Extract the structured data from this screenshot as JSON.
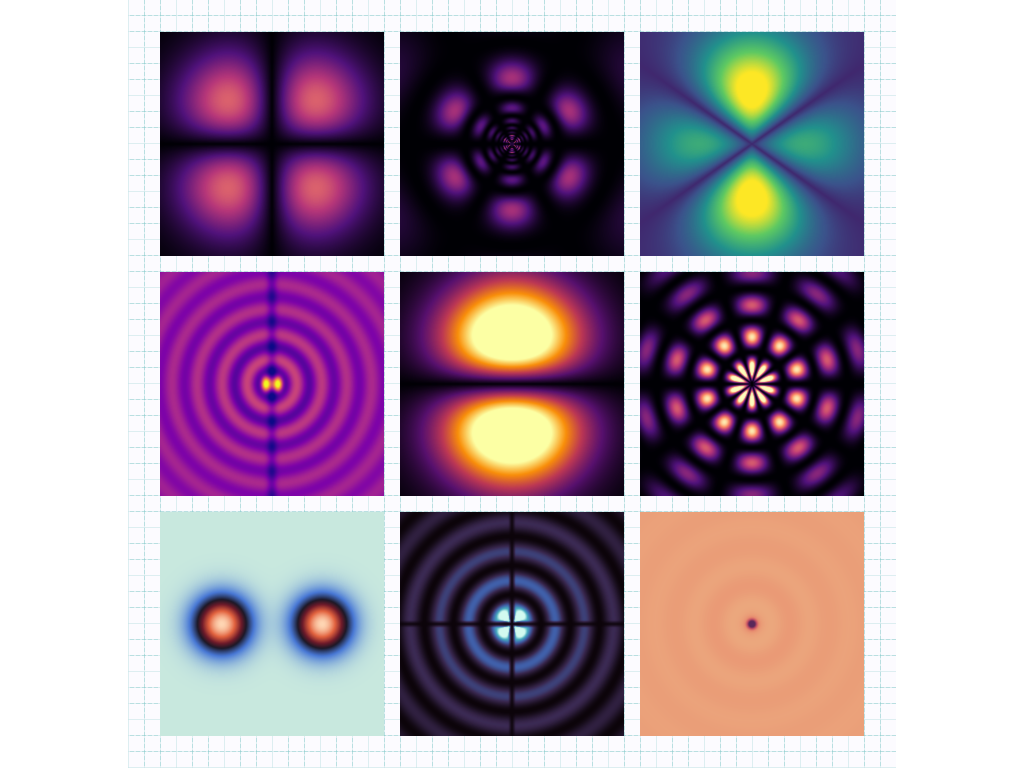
{
  "figure": {
    "panels": [
      {
        "id": "p1",
        "pattern": "orbital-dxy",
        "colormap": "magma"
      },
      {
        "id": "p2",
        "pattern": "radial-angular-fine",
        "colormap": "magma"
      },
      {
        "id": "p3",
        "pattern": "orbital-dz2-like",
        "colormap": "viridis"
      },
      {
        "id": "p4",
        "pattern": "rings-center-pair",
        "colormap": "plasma"
      },
      {
        "id": "p5",
        "pattern": "orbital-pz",
        "colormap": "inferno"
      },
      {
        "id": "p6",
        "pattern": "flower-rings",
        "colormap": "magma"
      },
      {
        "id": "p7",
        "pattern": "two-lobes",
        "colormap": "icefire"
      },
      {
        "id": "p8",
        "pattern": "rings-cross",
        "colormap": "mako-dark"
      },
      {
        "id": "p9",
        "pattern": "concentric-weak",
        "colormap": "flare"
      }
    ]
  }
}
